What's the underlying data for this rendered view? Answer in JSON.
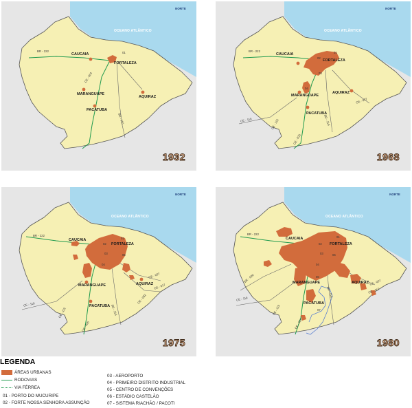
{
  "ocean_label": "OCEANO ATLÂNTICO",
  "north_label": "NORTE",
  "colors": {
    "land": "#f6f0b4",
    "ocean": "#a9d9ee",
    "urban": "#d26c3c",
    "highway": "#1f9a4e",
    "railway": "#1f9a4e",
    "road": "#666666",
    "background": "#e6e6e6",
    "north_arrow": "#3c5ea6"
  },
  "panels": [
    {
      "year": "1932",
      "cities": {
        "caucaia": "CAUCAIA",
        "fortaleza": "FORTALEZA",
        "maranguape": "MARANGUAPE",
        "aquiraz": "AQUIRAZ",
        "pacatuba": "PACATUBA"
      },
      "point_labels": {
        "p01": "01"
      },
      "road_labels": {
        "br222": "BR - 222",
        "ce004": "CE - 004",
        "br116": "BR - 116"
      }
    },
    {
      "year": "1968",
      "cities": {
        "caucaia": "CAUCAIA",
        "fortaleza": "FORTALEZA",
        "maranguape": "MARANGUAPE",
        "aquiraz": "AQUIRAZ",
        "pacatuba": "PACATUBA"
      },
      "point_labels": {
        "p01": "01",
        "p02": "02",
        "p03": "03",
        "p04": "04"
      },
      "road_labels": {
        "br222": "BR - 222",
        "ce119": "CE - 119",
        "ce115": "CE - 115",
        "ce025": "CE - 025",
        "br116": "BR - 116",
        "ce027": "CE - 027"
      }
    },
    {
      "year": "1975",
      "cities": {
        "caucaia": "CAUCAIA",
        "fortaleza": "FORTALEZA",
        "maranguape": "MARANGUAPE",
        "aquiraz": "AQUIRAZ",
        "pacatuba": "PACATUBA"
      },
      "point_labels": {
        "p01": "01",
        "p02": "02",
        "p03": "03",
        "p04": "04",
        "p05": "05"
      },
      "road_labels": {
        "br222": "BR - 222",
        "ce119": "CE - 119",
        "ce115": "CE - 115",
        "ce025": "CE - 025",
        "br116": "BR - 116",
        "ce027": "CE - 027",
        "ce017": "CE - 017",
        "ce002": "CE - 002"
      }
    },
    {
      "year": "1980",
      "cities": {
        "caucaia": "CAUCAIA",
        "fortaleza": "FORTALEZA",
        "maranguape": "MARANGUAPE",
        "aquiraz": "AQUIRAZ",
        "pacatuba": "PACATUBA"
      },
      "point_labels": {
        "p01": "01",
        "p02": "02",
        "p03": "03",
        "p04": "04",
        "p05": "05",
        "p06": "06",
        "p07": "07"
      },
      "road_labels": {
        "br222": "BR - 222",
        "ce119": "CE - 119",
        "ce115": "CE - 115",
        "ce025": "CE - 025",
        "br116": "BR - 116",
        "ce027": "CE - 027",
        "br020": "BR - 020",
        "ce117": "CE - 117"
      }
    }
  ],
  "legend": {
    "title": "LEGENDA",
    "urban_areas": "ÁREAS URBANAS",
    "highways": "RODOVIAS",
    "railway": "VIA FÉRREA",
    "items_left": [
      "01 - PORTO DO MUCURIPE",
      "02 - FORTE NOSSA SENHORA ASSUNÇÃO"
    ],
    "items_right": [
      "03 - AEROPORTO",
      "04 - PRIMEIRO DISTRITO INDUSTRIAL",
      "05 - CENTRO DE CONVENÇÕES",
      "06 - ESTÁDIO CASTELÃO",
      "07 - SISTEMA RIACHÃO / PACOTI"
    ]
  }
}
